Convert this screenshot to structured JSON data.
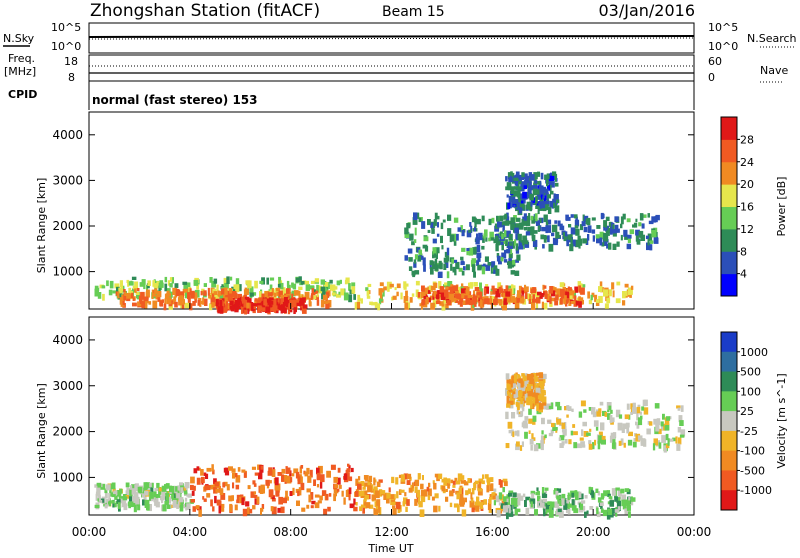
{
  "header": {
    "title": "Zhongshan Station (fitACF)",
    "beam": "Beam 15",
    "date": "03/Jan/2016"
  },
  "summary": {
    "nsky_label": "N.Sky",
    "nsearch_label": "N.Search",
    "freq_label_line1": "Freq.",
    "freq_label_line2": "[MHz]",
    "nave_label": "Nave",
    "cpid_label": "CPID",
    "cpid_text": "normal (fast stereo) 153",
    "noise_ticks_left": [
      "10^5",
      "10^0"
    ],
    "noise_ticks_right": [
      "10^5",
      "10^0"
    ],
    "freq_ticks": [
      "18",
      "8"
    ],
    "nave_ticks": [
      "60",
      "0"
    ]
  },
  "chart_data": [
    {
      "type": "heatmap",
      "panel": "power",
      "ylabel": "Slant Range [km]",
      "xlabel": "Time UT",
      "yticks": [
        1000,
        2000,
        3000,
        4000
      ],
      "ylim": [
        180,
        4500
      ],
      "xticks": [
        "00:00",
        "04:00",
        "08:00",
        "12:00",
        "16:00",
        "20:00",
        "00:00"
      ],
      "xlim_hours": [
        0,
        24
      ],
      "colorbar": {
        "label": "Power [dB]",
        "ticks": [
          "4",
          "8",
          "12",
          "16",
          "20",
          "24",
          "28"
        ],
        "range": [
          0,
          30
        ],
        "colors": [
          "#0000ff",
          "#2b4fb8",
          "#2e8b57",
          "#66cd55",
          "#e6e64c",
          "#f08a22",
          "#f05a22",
          "#e01818"
        ]
      },
      "blobs": [
        {
          "t": [
            0.2,
            10.5
          ],
          "r": [
            500,
            900
          ],
          "power": 14
        },
        {
          "t": [
            1.0,
            9.5
          ],
          "r": [
            300,
            650
          ],
          "power": 22
        },
        {
          "t": [
            5.0,
            8.5
          ],
          "r": [
            200,
            450
          ],
          "power": 26
        },
        {
          "t": [
            10.5,
            21.5
          ],
          "r": [
            300,
            800
          ],
          "power": 18
        },
        {
          "t": [
            13.0,
            19.5
          ],
          "r": [
            350,
            700
          ],
          "power": 24
        },
        {
          "t": [
            12.5,
            17.0
          ],
          "r": [
            1000,
            2300
          ],
          "power": 9
        },
        {
          "t": [
            16.0,
            22.5
          ],
          "r": [
            1600,
            2300
          ],
          "power": 8
        },
        {
          "t": [
            16.5,
            18.5
          ],
          "r": [
            2400,
            3200
          ],
          "power": 7
        }
      ]
    },
    {
      "type": "heatmap",
      "panel": "velocity",
      "ylabel": "Slant Range [km]",
      "xlabel": "Time UT",
      "yticks": [
        1000,
        2000,
        3000,
        4000
      ],
      "ylim": [
        180,
        4500
      ],
      "xticks": [
        "00:00",
        "04:00",
        "08:00",
        "12:00",
        "16:00",
        "20:00",
        "00:00"
      ],
      "xlim_hours": [
        0,
        24
      ],
      "colorbar": {
        "label": "Velocity [m s^-1]",
        "ticks": [
          "1000",
          "500",
          "100",
          "25",
          "-25",
          "-100",
          "-500",
          "-1000"
        ],
        "range": [
          -1200,
          1200
        ],
        "colors": [
          "#1a3cc8",
          "#2e6ea0",
          "#2e8b57",
          "#66cd55",
          "#c8c8c0",
          "#f0b428",
          "#f08a22",
          "#f05a22",
          "#e01818"
        ]
      },
      "blobs": [
        {
          "t": [
            0.2,
            4.0
          ],
          "r": [
            400,
            900
          ],
          "velocity": 120
        },
        {
          "t": [
            4.0,
            10.5
          ],
          "r": [
            300,
            1300
          ],
          "velocity": -700
        },
        {
          "t": [
            10.5,
            16.5
          ],
          "r": [
            300,
            1100
          ],
          "velocity": -450
        },
        {
          "t": [
            16.0,
            21.5
          ],
          "r": [
            250,
            800
          ],
          "velocity": 250
        },
        {
          "t": [
            16.5,
            23.5
          ],
          "r": [
            1700,
            2700
          ],
          "velocity": 0
        },
        {
          "t": [
            16.5,
            18.0
          ],
          "r": [
            2600,
            3300
          ],
          "velocity": -300
        }
      ]
    }
  ]
}
